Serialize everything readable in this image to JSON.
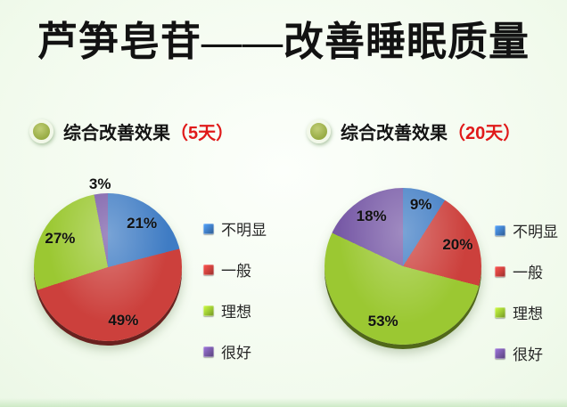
{
  "title": "芦笋皂苷——改善睡眠质量",
  "palette": {
    "background_edge": "#ddf1d6",
    "background_center": "#fcfffb",
    "title_color": "#121212",
    "header_text_color": "#141414",
    "header_highlight_color": "#e01a1a",
    "bullet_color": "#97ab43",
    "slice_label_color": "#121212",
    "legend_text_color": "#262626",
    "series_colors": {
      "blue": "#3f7cc4",
      "red": "#cc403c",
      "green": "#9bc832",
      "purple": "#7759a6"
    }
  },
  "legend_labels": [
    "不明显",
    "一般",
    "理想",
    "很好"
  ],
  "chart_data": [
    {
      "type": "pie",
      "header_text": "综合改善效果",
      "header_highlight": "（5天）",
      "categories": [
        "不明显",
        "一般",
        "理想",
        "很好"
      ],
      "values": [
        21,
        49,
        27,
        3
      ],
      "labels": [
        "21%",
        "49%",
        "27%",
        "3%"
      ],
      "colors": [
        "#3f7cc4",
        "#cc403c",
        "#9bc832",
        "#7759a6"
      ],
      "start_angle_deg": 0,
      "direction": "clockwise",
      "legend_position": "right"
    },
    {
      "type": "pie",
      "header_text": "综合改善效果",
      "header_highlight": "（20天）",
      "categories": [
        "不明显",
        "一般",
        "理想",
        "很好"
      ],
      "values": [
        9,
        20,
        53,
        18
      ],
      "labels": [
        "9%",
        "20%",
        "53%",
        "18%"
      ],
      "colors": [
        "#3f7cc4",
        "#cc403c",
        "#9bc832",
        "#7759a6"
      ],
      "start_angle_deg": 0,
      "direction": "clockwise",
      "legend_position": "right"
    }
  ]
}
